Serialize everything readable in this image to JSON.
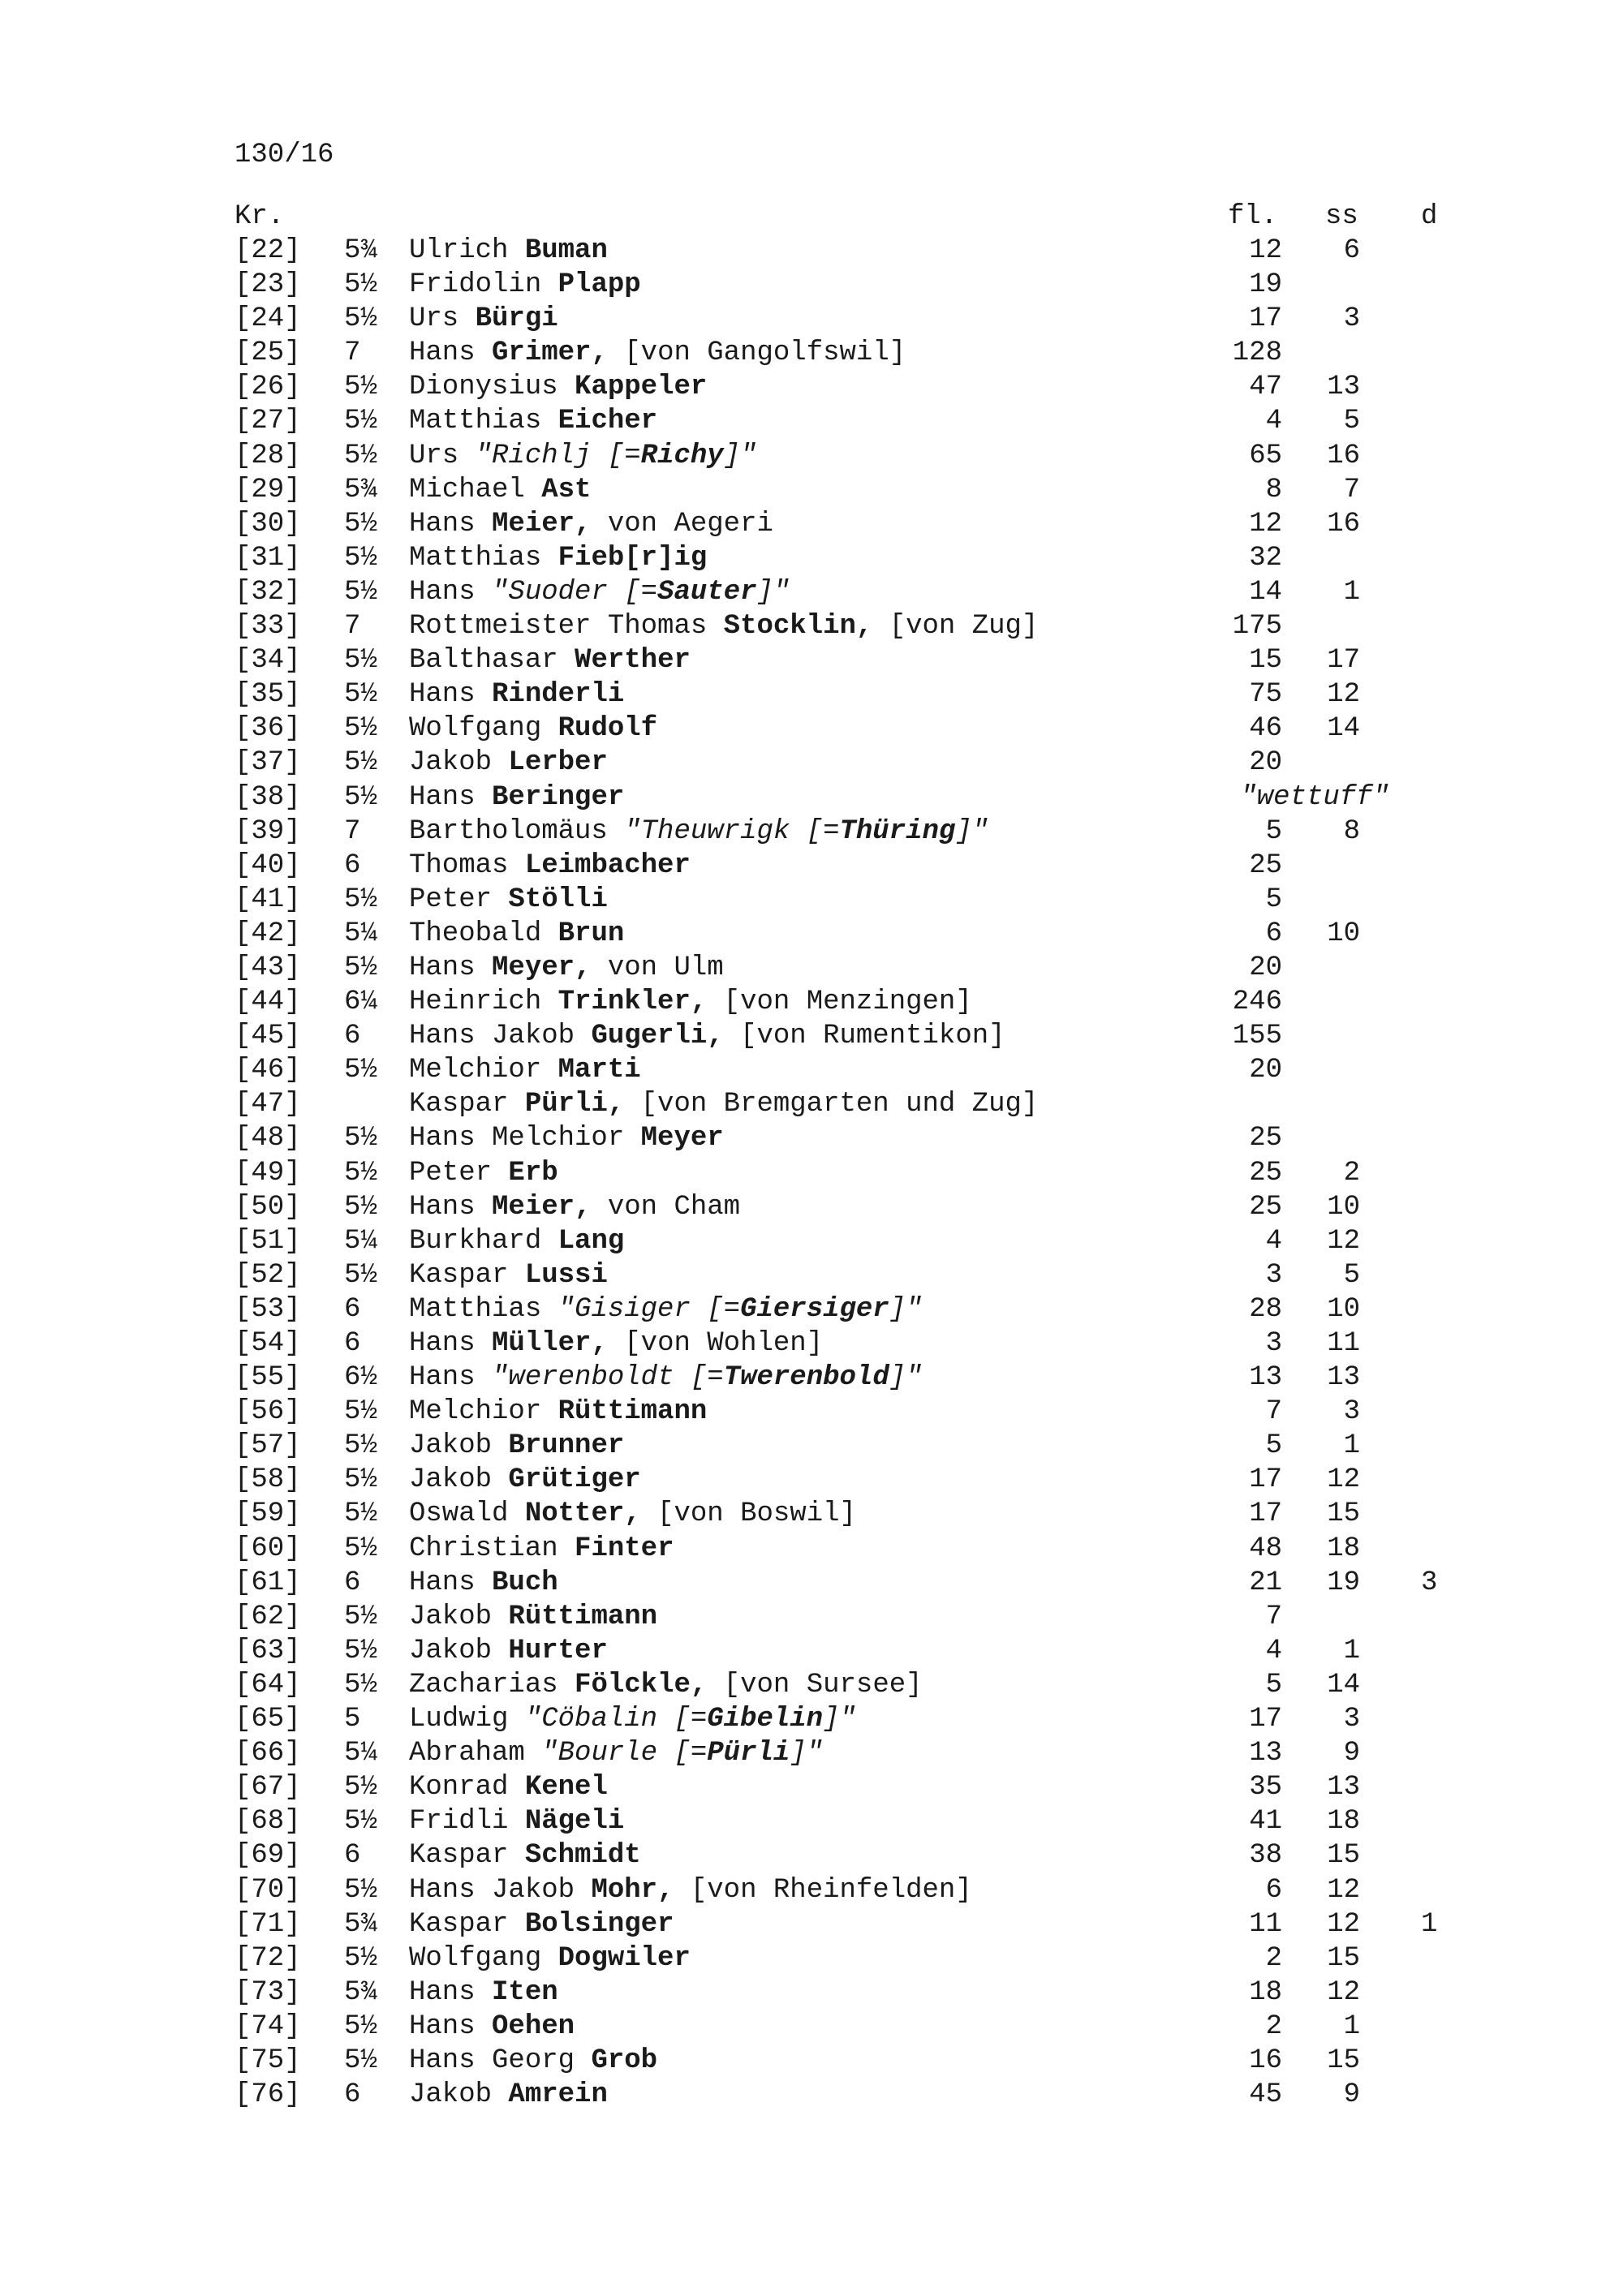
{
  "page_id": "130/16",
  "headers": {
    "kr": "Kr.",
    "fl": "fl.",
    "ss": "ss",
    "d": "d"
  },
  "rows": [
    {
      "nr": "[22]",
      "frac": "5¾",
      "name": [
        [
          "Ulrich ",
          ""
        ],
        [
          "Buman",
          "b"
        ]
      ],
      "fl": "12",
      "ss": "6",
      "d": ""
    },
    {
      "nr": "[23]",
      "frac": "5½",
      "name": [
        [
          "Fridolin ",
          ""
        ],
        [
          "Plapp",
          "b"
        ]
      ],
      "fl": "19",
      "ss": "",
      "d": ""
    },
    {
      "nr": "[24]",
      "frac": "5½",
      "name": [
        [
          "Urs ",
          ""
        ],
        [
          "Bürgi",
          "b"
        ]
      ],
      "fl": "17",
      "ss": "3",
      "d": ""
    },
    {
      "nr": "[25]",
      "frac": "7",
      "name": [
        [
          "Hans ",
          ""
        ],
        [
          "Grimer,",
          "b"
        ],
        [
          " [von Gangolfswil]",
          ""
        ]
      ],
      "fl": "128",
      "ss": "",
      "d": ""
    },
    {
      "nr": "[26]",
      "frac": "5½",
      "name": [
        [
          "Dionysius ",
          ""
        ],
        [
          "Kappeler",
          "b"
        ]
      ],
      "fl": "47",
      "ss": "13",
      "d": ""
    },
    {
      "nr": "[27]",
      "frac": "5½",
      "name": [
        [
          "Matthias ",
          ""
        ],
        [
          "Eicher",
          "b"
        ]
      ],
      "fl": "4",
      "ss": "5",
      "d": ""
    },
    {
      "nr": "[28]",
      "frac": "5½",
      "name": [
        [
          "Urs ",
          ""
        ],
        [
          "\"Richlj [=",
          "i"
        ],
        [
          "Richy",
          "bi"
        ],
        [
          "]\"",
          "i"
        ]
      ],
      "fl": "65",
      "ss": "16",
      "d": ""
    },
    {
      "nr": "[29]",
      "frac": "5¾",
      "name": [
        [
          "Michael ",
          ""
        ],
        [
          "Ast",
          "b"
        ]
      ],
      "fl": "8",
      "ss": "7",
      "d": ""
    },
    {
      "nr": "[30]",
      "frac": "5½",
      "name": [
        [
          "Hans ",
          ""
        ],
        [
          "Meier,",
          "b"
        ],
        [
          " von Aegeri",
          ""
        ]
      ],
      "fl": "12",
      "ss": "16",
      "d": ""
    },
    {
      "nr": "[31]",
      "frac": "5½",
      "name": [
        [
          "Matthias ",
          ""
        ],
        [
          "Fieb[r]ig",
          "b"
        ]
      ],
      "fl": "32",
      "ss": "",
      "d": ""
    },
    {
      "nr": "[32]",
      "frac": "5½",
      "name": [
        [
          "Hans ",
          ""
        ],
        [
          "\"Suoder [=",
          "i"
        ],
        [
          "Sauter",
          "bi"
        ],
        [
          "]\"",
          "i"
        ]
      ],
      "fl": "14",
      "ss": "1",
      "d": ""
    },
    {
      "nr": "[33]",
      "frac": "7",
      "name": [
        [
          "Rottmeister Thomas ",
          ""
        ],
        [
          "Stocklin,",
          "b"
        ],
        [
          " [von Zug]",
          ""
        ]
      ],
      "fl": "175",
      "ss": "",
      "d": ""
    },
    {
      "nr": "[34]",
      "frac": "5½",
      "name": [
        [
          "Balthasar ",
          ""
        ],
        [
          "Werther",
          "b"
        ]
      ],
      "fl": "15",
      "ss": "17",
      "d": ""
    },
    {
      "nr": "[35]",
      "frac": "5½",
      "name": [
        [
          "Hans ",
          ""
        ],
        [
          "Rinderli",
          "b"
        ]
      ],
      "fl": "75",
      "ss": "12",
      "d": ""
    },
    {
      "nr": "[36]",
      "frac": "5½",
      "name": [
        [
          "Wolfgang ",
          ""
        ],
        [
          "Rudolf",
          "b"
        ]
      ],
      "fl": "46",
      "ss": "14",
      "d": ""
    },
    {
      "nr": "[37]",
      "frac": "5½",
      "name": [
        [
          "Jakob ",
          ""
        ],
        [
          "Lerber",
          "b"
        ]
      ],
      "fl": "20",
      "ss": "",
      "d": ""
    },
    {
      "nr": "[38]",
      "frac": "5½",
      "name": [
        [
          "Hans ",
          ""
        ],
        [
          "Beringer",
          "b"
        ]
      ],
      "fl": "\"wettuff\"",
      "ss": "",
      "d": "",
      "note": true
    },
    {
      "nr": "[39]",
      "frac": "7",
      "name": [
        [
          "Bartholomäus ",
          ""
        ],
        [
          "\"Theuwrigk [=",
          "i"
        ],
        [
          "Thüring",
          "bi"
        ],
        [
          "]\"",
          "i"
        ]
      ],
      "fl": "5",
      "ss": "8",
      "d": ""
    },
    {
      "nr": "[40]",
      "frac": "6",
      "name": [
        [
          "Thomas ",
          ""
        ],
        [
          "Leimbacher",
          "b"
        ]
      ],
      "fl": "25",
      "ss": "",
      "d": ""
    },
    {
      "nr": "[41]",
      "frac": "5½",
      "name": [
        [
          "Peter ",
          ""
        ],
        [
          "Stölli",
          "b"
        ]
      ],
      "fl": "5",
      "ss": "",
      "d": ""
    },
    {
      "nr": "[42]",
      "frac": "5¼",
      "name": [
        [
          "Theobald ",
          ""
        ],
        [
          "Brun",
          "b"
        ]
      ],
      "fl": "6",
      "ss": "10",
      "d": ""
    },
    {
      "nr": "[43]",
      "frac": "5½",
      "name": [
        [
          "Hans ",
          ""
        ],
        [
          "Meyer,",
          "b"
        ],
        [
          " von Ulm",
          ""
        ]
      ],
      "fl": "20",
      "ss": "",
      "d": ""
    },
    {
      "nr": "[44]",
      "frac": "6¼",
      "name": [
        [
          "Heinrich ",
          ""
        ],
        [
          "Trinkler,",
          "b"
        ],
        [
          " [von Menzingen]",
          ""
        ]
      ],
      "fl": "246",
      "ss": "",
      "d": ""
    },
    {
      "nr": "[45]",
      "frac": "6",
      "name": [
        [
          "Hans Jakob ",
          ""
        ],
        [
          "Gugerli,",
          "b"
        ],
        [
          " [von Rumentikon]",
          ""
        ]
      ],
      "fl": "155",
      "ss": "",
      "d": ""
    },
    {
      "nr": "[46]",
      "frac": "5½",
      "name": [
        [
          "Melchior ",
          ""
        ],
        [
          "Marti",
          "b"
        ]
      ],
      "fl": "20",
      "ss": "",
      "d": ""
    },
    {
      "nr": "[47]",
      "frac": "",
      "name": [
        [
          "Kaspar ",
          ""
        ],
        [
          "Pürli,",
          "b"
        ],
        [
          " [von Bremgarten und Zug]",
          ""
        ]
      ],
      "fl": "",
      "ss": "",
      "d": ""
    },
    {
      "nr": "[48]",
      "frac": "5½",
      "name": [
        [
          "Hans Melchior ",
          ""
        ],
        [
          "Meyer",
          "b"
        ]
      ],
      "fl": "25",
      "ss": "",
      "d": ""
    },
    {
      "nr": "[49]",
      "frac": "5½",
      "name": [
        [
          "Peter ",
          ""
        ],
        [
          "Erb",
          "b"
        ]
      ],
      "fl": "25",
      "ss": "2",
      "d": ""
    },
    {
      "nr": "[50]",
      "frac": "5½",
      "name": [
        [
          "Hans ",
          ""
        ],
        [
          "Meier,",
          "b"
        ],
        [
          " von Cham",
          ""
        ]
      ],
      "fl": "25",
      "ss": "10",
      "d": ""
    },
    {
      "nr": "[51]",
      "frac": "5¼",
      "name": [
        [
          "Burkhard ",
          ""
        ],
        [
          "Lang",
          "b"
        ]
      ],
      "fl": "4",
      "ss": "12",
      "d": ""
    },
    {
      "nr": "[52]",
      "frac": "5½",
      "name": [
        [
          "Kaspar ",
          ""
        ],
        [
          "Lussi",
          "b"
        ]
      ],
      "fl": "3",
      "ss": "5",
      "d": ""
    },
    {
      "nr": "[53]",
      "frac": "6",
      "name": [
        [
          "Matthias ",
          ""
        ],
        [
          "\"Gisiger [=",
          "i"
        ],
        [
          "Giersiger",
          "bi"
        ],
        [
          "]\"",
          "i"
        ]
      ],
      "fl": "28",
      "ss": "10",
      "d": ""
    },
    {
      "nr": "[54]",
      "frac": "6",
      "name": [
        [
          "Hans ",
          ""
        ],
        [
          "Müller,",
          "b"
        ],
        [
          " [von Wohlen]",
          ""
        ]
      ],
      "fl": "3",
      "ss": "11",
      "d": ""
    },
    {
      "nr": "[55]",
      "frac": "6½",
      "name": [
        [
          "Hans ",
          ""
        ],
        [
          "\"werenboldt [=",
          "i"
        ],
        [
          "Twerenbold",
          "bi"
        ],
        [
          "]\"",
          "i"
        ]
      ],
      "fl": "13",
      "ss": "13",
      "d": ""
    },
    {
      "nr": "[56]",
      "frac": "5½",
      "name": [
        [
          "Melchior ",
          ""
        ],
        [
          "Rüttimann",
          "b"
        ]
      ],
      "fl": "7",
      "ss": "3",
      "d": ""
    },
    {
      "nr": "[57]",
      "frac": "5½",
      "name": [
        [
          "Jakob ",
          ""
        ],
        [
          "Brunner",
          "b"
        ]
      ],
      "fl": "5",
      "ss": "1",
      "d": ""
    },
    {
      "nr": "[58]",
      "frac": "5½",
      "name": [
        [
          "Jakob ",
          ""
        ],
        [
          "Grütiger",
          "b"
        ]
      ],
      "fl": "17",
      "ss": "12",
      "d": ""
    },
    {
      "nr": "[59]",
      "frac": "5½",
      "name": [
        [
          "Oswald ",
          ""
        ],
        [
          "Notter,",
          "b"
        ],
        [
          " [von Boswil]",
          ""
        ]
      ],
      "fl": "17",
      "ss": "15",
      "d": ""
    },
    {
      "nr": "[60]",
      "frac": "5½",
      "name": [
        [
          "Christian ",
          ""
        ],
        [
          "Finter",
          "b"
        ]
      ],
      "fl": "48",
      "ss": "18",
      "d": ""
    },
    {
      "nr": "[61]",
      "frac": "6",
      "name": [
        [
          "Hans ",
          ""
        ],
        [
          "Buch",
          "b"
        ]
      ],
      "fl": "21",
      "ss": "19",
      "d": "3"
    },
    {
      "nr": "[62]",
      "frac": "5½",
      "name": [
        [
          "Jakob ",
          ""
        ],
        [
          "Rüttimann",
          "b"
        ]
      ],
      "fl": "7",
      "ss": "",
      "d": ""
    },
    {
      "nr": "[63]",
      "frac": "5½",
      "name": [
        [
          "Jakob ",
          ""
        ],
        [
          "Hurter",
          "b"
        ]
      ],
      "fl": "4",
      "ss": "1",
      "d": ""
    },
    {
      "nr": "[64]",
      "frac": "5½",
      "name": [
        [
          "Zacharias ",
          ""
        ],
        [
          "Fölckle,",
          "b"
        ],
        [
          " [von Sursee]",
          ""
        ]
      ],
      "fl": "5",
      "ss": "14",
      "d": ""
    },
    {
      "nr": "[65]",
      "frac": "5",
      "name": [
        [
          "Ludwig ",
          ""
        ],
        [
          "\"Cöbalin [=",
          "i"
        ],
        [
          "Gibelin",
          "bi"
        ],
        [
          "]\"",
          "i"
        ]
      ],
      "fl": "17",
      "ss": "3",
      "d": ""
    },
    {
      "nr": "[66]",
      "frac": "5¼",
      "name": [
        [
          "Abraham ",
          ""
        ],
        [
          "\"Bourle [=",
          "i"
        ],
        [
          "Pürli",
          "bi"
        ],
        [
          "]\"",
          "i"
        ]
      ],
      "fl": "13",
      "ss": "9",
      "d": ""
    },
    {
      "nr": "[67]",
      "frac": "5½",
      "name": [
        [
          "Konrad ",
          ""
        ],
        [
          "Kenel",
          "b"
        ]
      ],
      "fl": "35",
      "ss": "13",
      "d": ""
    },
    {
      "nr": "[68]",
      "frac": "5½",
      "name": [
        [
          "Fridli ",
          ""
        ],
        [
          "Nägeli",
          "b"
        ]
      ],
      "fl": "41",
      "ss": "18",
      "d": ""
    },
    {
      "nr": "[69]",
      "frac": "6",
      "name": [
        [
          "Kaspar ",
          ""
        ],
        [
          "Schmidt",
          "b"
        ]
      ],
      "fl": "38",
      "ss": "15",
      "d": ""
    },
    {
      "nr": "[70]",
      "frac": "5½",
      "name": [
        [
          "Hans Jakob ",
          ""
        ],
        [
          "Mohr,",
          "b"
        ],
        [
          " [von Rheinfelden]",
          ""
        ]
      ],
      "fl": "6",
      "ss": "12",
      "d": ""
    },
    {
      "nr": "[71]",
      "frac": "5¾",
      "name": [
        [
          "Kaspar ",
          ""
        ],
        [
          "Bolsinger",
          "b"
        ]
      ],
      "fl": "11",
      "ss": "12",
      "d": "1"
    },
    {
      "nr": "[72]",
      "frac": "5½",
      "name": [
        [
          "Wolfgang ",
          ""
        ],
        [
          "Dogwiler",
          "b"
        ]
      ],
      "fl": "2",
      "ss": "15",
      "d": ""
    },
    {
      "nr": "[73]",
      "frac": "5¾",
      "name": [
        [
          "Hans ",
          ""
        ],
        [
          "Iten",
          "b"
        ]
      ],
      "fl": "18",
      "ss": "12",
      "d": ""
    },
    {
      "nr": "[74]",
      "frac": "5½",
      "name": [
        [
          "Hans ",
          ""
        ],
        [
          "Oehen",
          "b"
        ]
      ],
      "fl": "2",
      "ss": "1",
      "d": ""
    },
    {
      "nr": "[75]",
      "frac": "5½",
      "name": [
        [
          "Hans Georg ",
          ""
        ],
        [
          "Grob",
          "b"
        ]
      ],
      "fl": "16",
      "ss": "15",
      "d": ""
    },
    {
      "nr": "[76]",
      "frac": "6",
      "name": [
        [
          "Jakob ",
          ""
        ],
        [
          "Amrein",
          "b"
        ]
      ],
      "fl": "45",
      "ss": "9",
      "d": ""
    }
  ]
}
